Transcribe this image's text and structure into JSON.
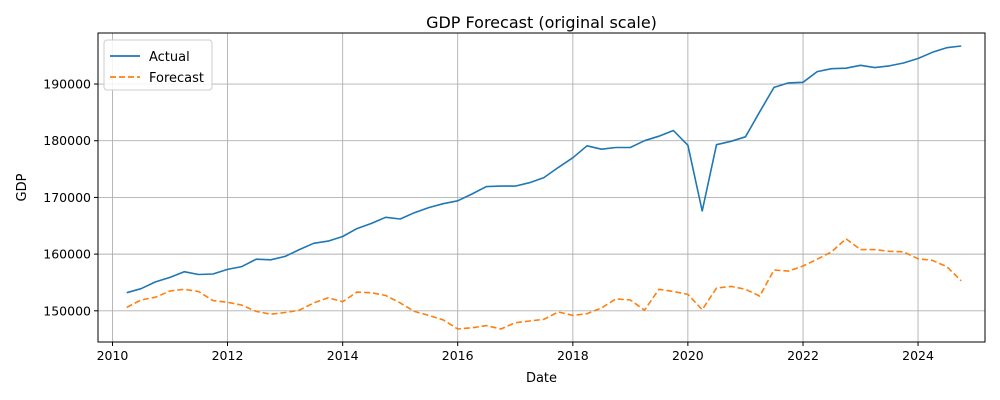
{
  "chart_data": {
    "type": "line",
    "title": "GDP Forecast (original scale)",
    "xlabel": "Date",
    "ylabel": "GDP",
    "x_ticks": [
      "2010",
      "2012",
      "2014",
      "2016",
      "2018",
      "2020",
      "2022",
      "2024"
    ],
    "y_ticks": [
      "150000",
      "160000",
      "170000",
      "180000",
      "190000"
    ],
    "xlim": [
      "2009-10-01",
      "2025-03-01"
    ],
    "ylim": [
      144500,
      199000
    ],
    "grid": true,
    "legend_position": "top-left",
    "x": [
      "2010-04-01",
      "2010-07-01",
      "2010-10-01",
      "2011-01-01",
      "2011-04-01",
      "2011-07-01",
      "2011-10-01",
      "2012-01-01",
      "2012-04-01",
      "2012-07-01",
      "2012-10-01",
      "2013-01-01",
      "2013-04-01",
      "2013-07-01",
      "2013-10-01",
      "2014-01-01",
      "2014-04-01",
      "2014-07-01",
      "2014-10-01",
      "2015-01-01",
      "2015-04-01",
      "2015-07-01",
      "2015-10-01",
      "2016-01-01",
      "2016-04-01",
      "2016-07-01",
      "2016-10-01",
      "2017-01-01",
      "2017-04-01",
      "2017-07-01",
      "2017-10-01",
      "2018-01-01",
      "2018-04-01",
      "2018-07-01",
      "2018-10-01",
      "2019-01-01",
      "2019-04-01",
      "2019-07-01",
      "2019-10-01",
      "2020-01-01",
      "2020-04-01",
      "2020-07-01",
      "2020-10-01",
      "2021-01-01",
      "2021-04-01",
      "2021-07-01",
      "2021-10-01",
      "2022-01-01",
      "2022-04-01",
      "2022-07-01",
      "2022-10-01",
      "2023-01-01",
      "2023-04-01",
      "2023-07-01",
      "2023-10-01",
      "2024-01-01",
      "2024-04-01",
      "2024-07-01",
      "2024-10-01"
    ],
    "series": [
      {
        "name": "Actual",
        "color": "#1f77b4",
        "style": "solid",
        "values": [
          153200,
          153900,
          155100,
          155900,
          156900,
          156400,
          156500,
          157300,
          157800,
          159100,
          159000,
          159600,
          160800,
          161900,
          162300,
          163100,
          164500,
          165400,
          166500,
          166200,
          167300,
          168200,
          168900,
          169400,
          170600,
          171900,
          172000,
          172000,
          172600,
          173500,
          175300,
          177000,
          179100,
          178500,
          178800,
          178800,
          180000,
          180800,
          181800,
          179200,
          167600,
          179300,
          179900,
          180700,
          185100,
          189400,
          190200,
          190300,
          192200,
          192700,
          192800,
          193300,
          192900,
          193200,
          193700,
          194500,
          195600,
          196400,
          196700
        ]
      },
      {
        "name": "Forecast",
        "color": "#ff7f0e",
        "style": "dashed",
        "values": [
          150600,
          151900,
          152400,
          153500,
          153800,
          153400,
          151800,
          151500,
          151000,
          149900,
          149400,
          149700,
          150100,
          151400,
          152300,
          151600,
          153300,
          153200,
          152700,
          151400,
          149900,
          149200,
          148400,
          146800,
          147000,
          147400,
          146800,
          147900,
          148200,
          148500,
          149800,
          149200,
          149500,
          150500,
          152100,
          151900,
          150100,
          153800,
          153400,
          152900,
          150200,
          154000,
          154300,
          153800,
          152600,
          157200,
          157000,
          157900,
          159100,
          160400,
          162700,
          160800,
          160800,
          160500,
          160400,
          159200,
          158900,
          157800,
          155300
        ]
      }
    ]
  }
}
